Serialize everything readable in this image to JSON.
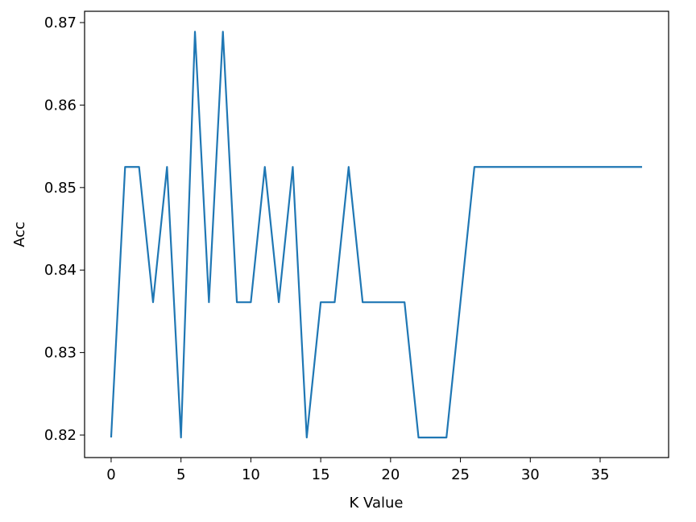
{
  "chart_data": {
    "type": "line",
    "x_label": "K Value",
    "y_label": "Acc",
    "x": [
      0,
      1,
      2,
      3,
      4,
      5,
      6,
      7,
      8,
      9,
      10,
      11,
      12,
      13,
      14,
      15,
      16,
      17,
      18,
      19,
      20,
      21,
      22,
      23,
      24,
      25,
      26,
      27,
      28,
      29,
      30,
      31,
      32,
      33,
      34,
      35,
      36,
      37,
      38
    ],
    "series": [
      {
        "color": "#1f77b4",
        "values": [
          0.8197,
          0.8525,
          0.8525,
          0.8361,
          0.8525,
          0.8197,
          0.8689,
          0.8361,
          0.8689,
          0.8361,
          0.8361,
          0.8525,
          0.8361,
          0.8525,
          0.8197,
          0.8361,
          0.8361,
          0.8525,
          0.8361,
          0.8361,
          0.8361,
          0.8361,
          0.8197,
          0.8197,
          0.8197,
          0.8361,
          0.8525,
          0.8525,
          0.8525,
          0.8525,
          0.8525,
          0.8525,
          0.8525,
          0.8525,
          0.8525,
          0.8525,
          0.8525,
          0.8525,
          0.8525
        ]
      }
    ],
    "xlim": [
      -1.9,
      39.9
    ],
    "ylim": [
      0.81727,
      0.87137
    ],
    "xticks": [
      0,
      5,
      10,
      15,
      20,
      25,
      30,
      35
    ],
    "yticks": [
      0.82,
      0.83,
      0.84,
      0.85,
      0.86,
      0.87
    ]
  }
}
